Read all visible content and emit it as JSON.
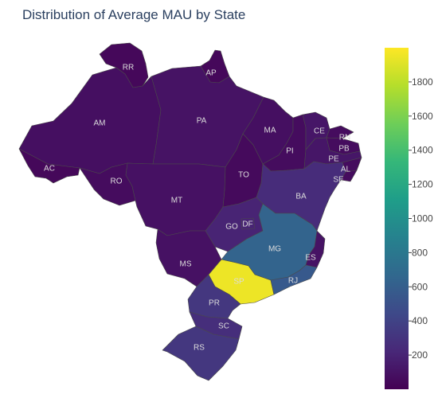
{
  "title": "Distribution of Average MAU by State",
  "colorscale": [
    "#440154",
    "#482878",
    "#3e4989",
    "#31688e",
    "#26828e",
    "#1f9e89",
    "#35b779",
    "#6ece58",
    "#b5de2b",
    "#fde725"
  ],
  "colorbar": {
    "min": 0,
    "max": 2000,
    "ticks": [
      200,
      400,
      600,
      800,
      1000,
      1200,
      1400,
      1600,
      1800
    ]
  },
  "chart_data": {
    "type": "choropleth",
    "metric": "Average MAU",
    "states": [
      {
        "code": "RR",
        "value": 40
      },
      {
        "code": "AP",
        "value": 40
      },
      {
        "code": "AM",
        "value": 80
      },
      {
        "code": "PA",
        "value": 100
      },
      {
        "code": "AC",
        "value": 40
      },
      {
        "code": "RO",
        "value": 60
      },
      {
        "code": "MT",
        "value": 90
      },
      {
        "code": "TO",
        "value": 50
      },
      {
        "code": "MA",
        "value": 80
      },
      {
        "code": "PI",
        "value": 60
      },
      {
        "code": "CE",
        "value": 120
      },
      {
        "code": "RN",
        "value": 60
      },
      {
        "code": "PB",
        "value": 60
      },
      {
        "code": "PE",
        "value": 120
      },
      {
        "code": "AL",
        "value": 60
      },
      {
        "code": "SE",
        "value": 60
      },
      {
        "code": "BA",
        "value": 250
      },
      {
        "code": "GO",
        "value": 200
      },
      {
        "code": "DF",
        "value": 200
      },
      {
        "code": "MS",
        "value": 90
      },
      {
        "code": "MG",
        "value": 640
      },
      {
        "code": "ES",
        "value": 100
      },
      {
        "code": "SP",
        "value": 1950
      },
      {
        "code": "RJ",
        "value": 560
      },
      {
        "code": "PR",
        "value": 320
      },
      {
        "code": "SC",
        "value": 260
      },
      {
        "code": "RS",
        "value": 320
      }
    ]
  }
}
